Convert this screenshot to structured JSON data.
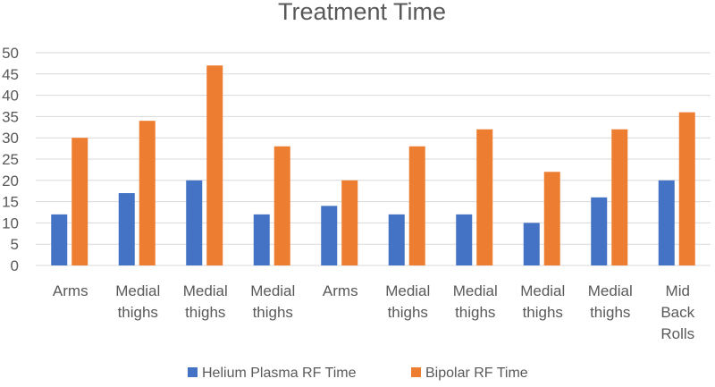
{
  "chart_data": {
    "type": "bar",
    "title": "Treatment Time",
    "xlabel": "",
    "ylabel": "",
    "ylim": [
      0,
      50
    ],
    "yticks": [
      0,
      5,
      10,
      15,
      20,
      25,
      30,
      35,
      40,
      45,
      50
    ],
    "grid": true,
    "legend": "bottom",
    "categories": [
      [
        "Arms"
      ],
      [
        "Medial",
        "thighs"
      ],
      [
        "Medial",
        "thighs"
      ],
      [
        "Medial",
        "thighs"
      ],
      [
        "Arms"
      ],
      [
        "Medial",
        "thighs"
      ],
      [
        "Medial",
        "thighs"
      ],
      [
        "Medial",
        "thighs"
      ],
      [
        "Medial",
        "thighs"
      ],
      [
        "Mid",
        "Back",
        "Rolls"
      ]
    ],
    "series": [
      {
        "name": "Helium Plasma RF Time",
        "color": "#4472c4",
        "values": [
          12,
          17,
          20,
          12,
          14,
          12,
          12,
          10,
          16,
          20
        ]
      },
      {
        "name": "Bipolar RF Time",
        "color": "#ed7d31",
        "values": [
          30,
          34,
          47,
          28,
          20,
          28,
          32,
          22,
          32,
          36
        ]
      }
    ]
  }
}
